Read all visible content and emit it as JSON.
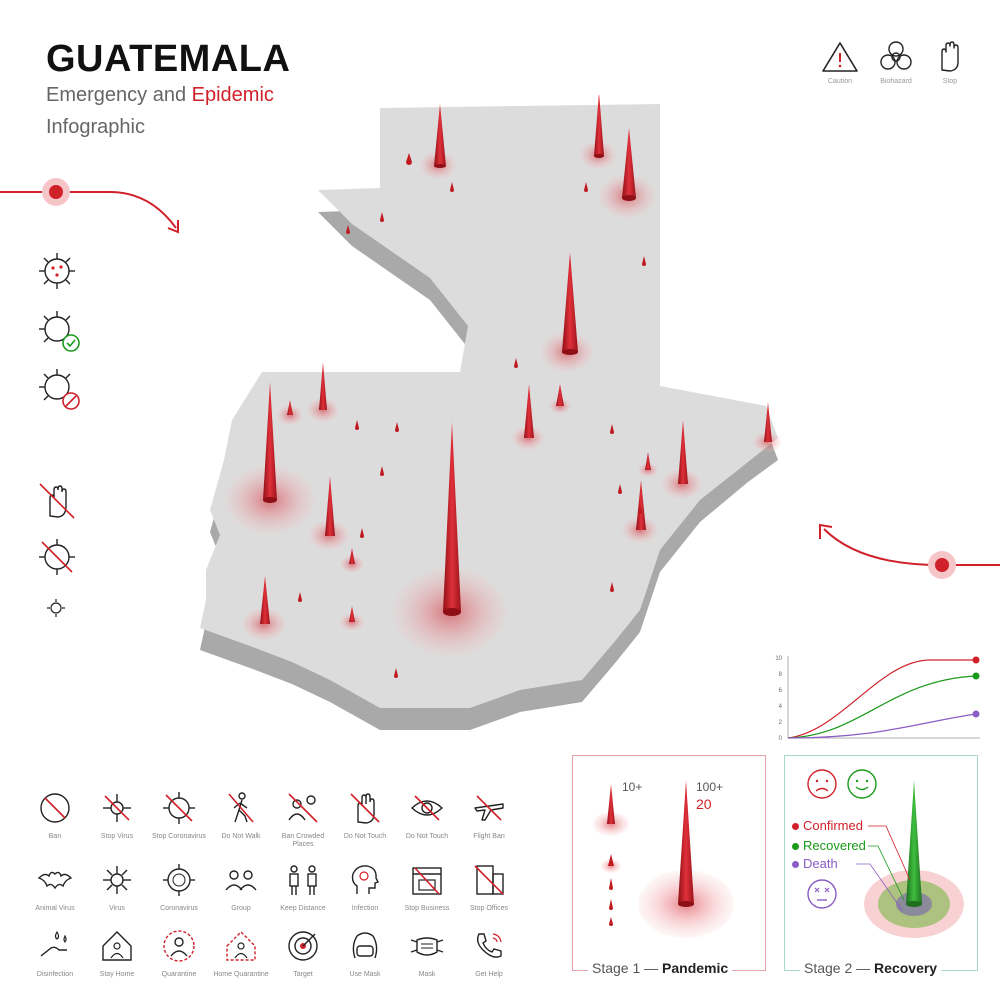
{
  "header": {
    "title": "GUATEMALA",
    "subtitle_prefix": "Emergency and ",
    "subtitle_highlight": "Epidemic",
    "subtitle_line2": "Infographic"
  },
  "top_icons": [
    {
      "name": "caution",
      "label": "Caution"
    },
    {
      "name": "biohazard",
      "label": "Biohazard"
    },
    {
      "name": "stop",
      "label": "Stop"
    }
  ],
  "icon_grid": [
    [
      "Ban",
      "Stop Virus",
      "Stop Coronavirus",
      "Do Not Walk",
      "Ban Crowded Places",
      "Do Not Touch",
      "Do Not Touch",
      "Flight Ban"
    ],
    [
      "Animal Virus",
      "Virus",
      "Coronavirus",
      "Group",
      "Keep Distance",
      "Infection",
      "Stop Business",
      "Stop Offices"
    ],
    [
      "Disinfection",
      "Stay Home",
      "Quarantine",
      "Home Quarantine",
      "Target",
      "Use Mask",
      "Mask",
      "Get Help"
    ]
  ],
  "mini_chart": {
    "y_ticks": [
      "10",
      "8",
      "6",
      "4",
      "2",
      "0"
    ]
  },
  "stage1": {
    "label_prefix": "Stage 1 — ",
    "label_bold": "Pandemic",
    "count_small": "10+",
    "count_large": "100+",
    "count_value": "20"
  },
  "stage2": {
    "label_prefix": "Stage 2 — ",
    "label_bold": "Recovery",
    "legend": [
      {
        "label": "Confirmed",
        "color": "#d0202a"
      },
      {
        "label": "Recovered",
        "color": "#1a9a1a"
      },
      {
        "label": "Death",
        "color": "#8b5cc5"
      }
    ]
  },
  "colors": {
    "accent": "#d0202a",
    "map": "#dcdcdc",
    "map_side": "#a9a9a9",
    "green": "#1a9a1a",
    "purple": "#8b5cc5"
  },
  "watermark_id": "#333081847"
}
